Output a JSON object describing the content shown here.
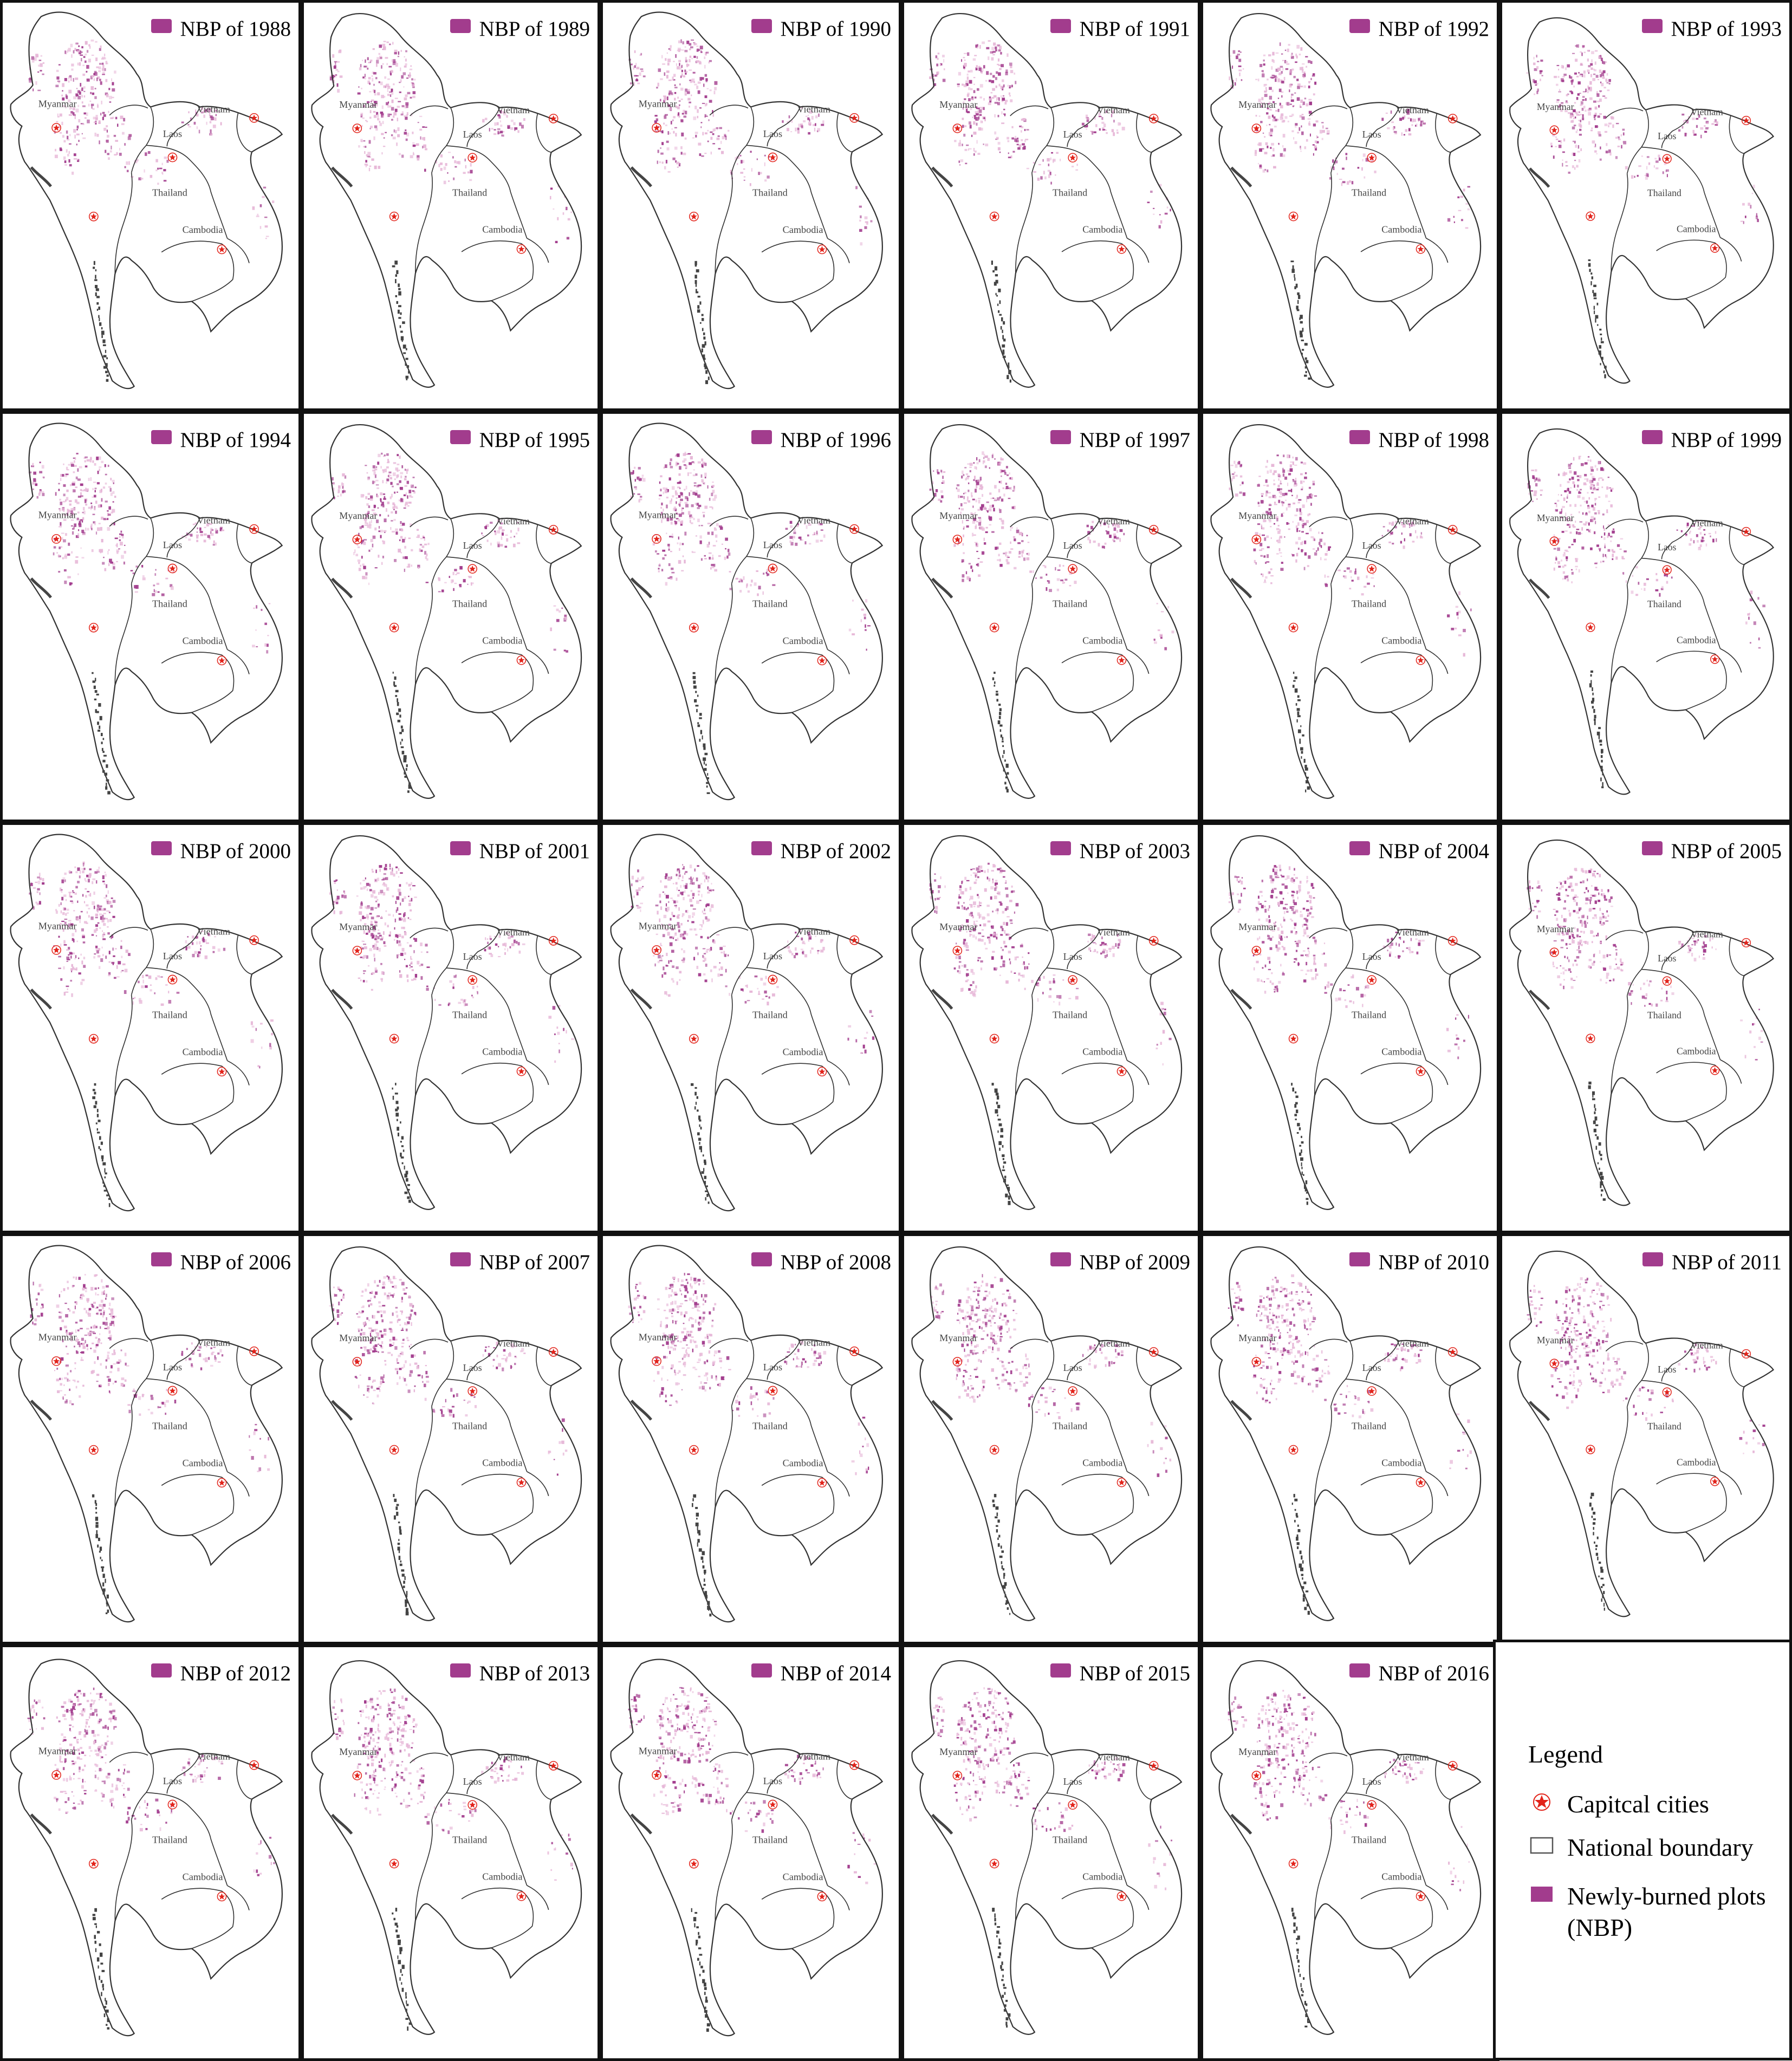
{
  "figure": {
    "panel_title_prefix": "NBP of",
    "country_labels": [
      "Myanmar",
      "Vietnam",
      "Laos",
      "Thailand",
      "Cambodia"
    ],
    "colors": {
      "nbp": "#a23c8d",
      "nbp_light": "#e7b8d8",
      "boundary": "#333333",
      "capital_star": "#e2231a",
      "coast_dark": "#444444"
    },
    "panels": [
      {
        "year": "1988",
        "title": "NBP of 1988"
      },
      {
        "year": "1989",
        "title": "NBP of 1989"
      },
      {
        "year": "1990",
        "title": "NBP of 1990"
      },
      {
        "year": "1991",
        "title": "NBP of 1991"
      },
      {
        "year": "1992",
        "title": "NBP of 1992"
      },
      {
        "year": "1993",
        "title": "NBP of 1993"
      },
      {
        "year": "1994",
        "title": "NBP of 1994"
      },
      {
        "year": "1995",
        "title": "NBP of 1995"
      },
      {
        "year": "1996",
        "title": "NBP of 1996"
      },
      {
        "year": "1997",
        "title": "NBP of 1997"
      },
      {
        "year": "1998",
        "title": "NBP of 1998"
      },
      {
        "year": "1999",
        "title": "NBP of 1999"
      },
      {
        "year": "2000",
        "title": "NBP of 2000"
      },
      {
        "year": "2001",
        "title": "NBP of 2001"
      },
      {
        "year": "2002",
        "title": "NBP of 2002"
      },
      {
        "year": "2003",
        "title": "NBP of 2003"
      },
      {
        "year": "2004",
        "title": "NBP of 2004"
      },
      {
        "year": "2005",
        "title": "NBP of 2005"
      },
      {
        "year": "2006",
        "title": "NBP of 2006"
      },
      {
        "year": "2007",
        "title": "NBP of 2007"
      },
      {
        "year": "2008",
        "title": "NBP of 2008"
      },
      {
        "year": "2009",
        "title": "NBP of 2009"
      },
      {
        "year": "2010",
        "title": "NBP of 2010"
      },
      {
        "year": "2011",
        "title": "NBP of 2011"
      },
      {
        "year": "2012",
        "title": "NBP of 2012"
      },
      {
        "year": "2013",
        "title": "NBP of 2013"
      },
      {
        "year": "2014",
        "title": "NBP of 2014"
      },
      {
        "year": "2015",
        "title": "NBP of 2015"
      },
      {
        "year": "2016",
        "title": "NBP of 2016"
      }
    ],
    "legend": {
      "title": "Legend",
      "items": [
        {
          "symbol": "capital-star",
          "label": "Capitcal cities"
        },
        {
          "symbol": "boundary-box",
          "label": "National boundary"
        },
        {
          "symbol": "nbp-swatch",
          "label": "Newly-burned plots",
          "label_line2": "(NBP)"
        }
      ]
    }
  }
}
